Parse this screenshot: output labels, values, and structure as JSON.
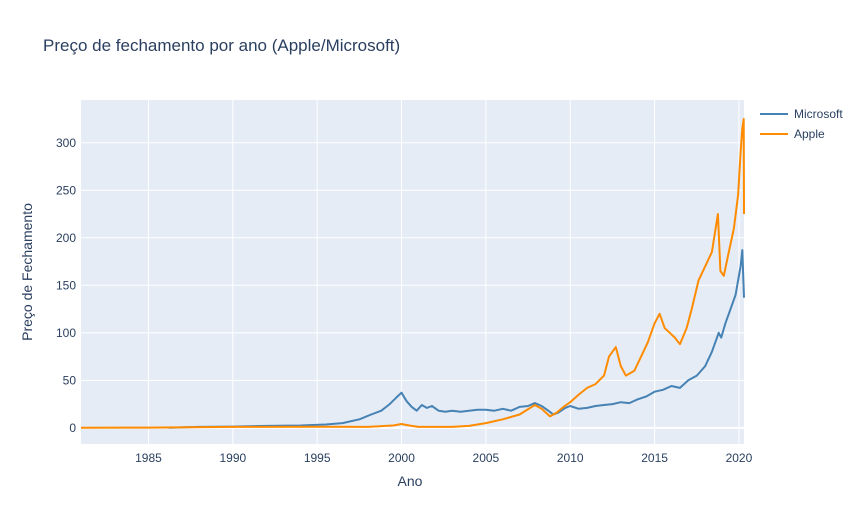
{
  "chart_data": {
    "type": "line",
    "title": "Preço de fechamento por ano (Apple/Microsoft)",
    "xlabel": "Ano",
    "ylabel": "Preço de Fechamento",
    "xlim": [
      1981.0,
      2020.3
    ],
    "ylim": [
      -17,
      345
    ],
    "xticks": [
      1985,
      1990,
      1995,
      2000,
      2005,
      2010,
      2015,
      2020
    ],
    "yticks": [
      0,
      50,
      100,
      150,
      200,
      250,
      300
    ],
    "grid": true,
    "background": "#e5ecf6",
    "legend_position": "top-right",
    "series": [
      {
        "name": "Microsoft",
        "color": "#4682b4",
        "x": [
          1986.2,
          1988,
          1990,
          1992,
          1994,
          1995.5,
          1996.5,
          1997.5,
          1998.2,
          1998.8,
          1999.3,
          1999.7,
          2000.0,
          2000.3,
          2000.6,
          2000.9,
          2001.2,
          2001.5,
          2001.8,
          2002.2,
          2002.6,
          2003.0,
          2003.5,
          2004.0,
          2004.5,
          2005.0,
          2005.5,
          2006.0,
          2006.5,
          2007.0,
          2007.5,
          2007.9,
          2008.3,
          2008.7,
          2009.0,
          2009.3,
          2009.7,
          2010.0,
          2010.5,
          2011.0,
          2011.5,
          2012.0,
          2012.5,
          2013.0,
          2013.5,
          2014.0,
          2014.5,
          2015.0,
          2015.5,
          2016.0,
          2016.5,
          2017.0,
          2017.5,
          2018.0,
          2018.4,
          2018.8,
          2018.95,
          2019.2,
          2019.5,
          2019.8,
          2020.0,
          2020.1,
          2020.2,
          2020.3
        ],
        "y": [
          0,
          1,
          1.3,
          2,
          2.5,
          3.5,
          5,
          9,
          14,
          18,
          25,
          32,
          37,
          28,
          22,
          18,
          24,
          21,
          23,
          18,
          17,
          18,
          17,
          18,
          19,
          19,
          18,
          20,
          18,
          22,
          23,
          26,
          23,
          18,
          14,
          16,
          21,
          23,
          20,
          21,
          23,
          24,
          25,
          27,
          26,
          30,
          33,
          38,
          40,
          44,
          42,
          50,
          55,
          65,
          80,
          100,
          95,
          110,
          125,
          140,
          160,
          170,
          187,
          137
        ]
      },
      {
        "name": "Apple",
        "color": "#ff8c00",
        "x": [
          1981,
          1985,
          1990,
          1995,
          1998,
          1999.5,
          2000.0,
          2000.3,
          2000.6,
          2001,
          2003,
          2004,
          2005,
          2006,
          2007,
          2007.9,
          2008.3,
          2008.8,
          2009.2,
          2009.6,
          2010.0,
          2010.5,
          2011.0,
          2011.5,
          2012.0,
          2012.3,
          2012.7,
          2013.0,
          2013.3,
          2013.8,
          2014.2,
          2014.6,
          2015.0,
          2015.3,
          2015.6,
          2015.9,
          2016.2,
          2016.5,
          2016.9,
          2017.2,
          2017.6,
          2018.0,
          2018.4,
          2018.75,
          2018.9,
          2019.1,
          2019.4,
          2019.7,
          2019.95,
          2020.1,
          2020.2,
          2020.28,
          2020.3
        ],
        "y": [
          0,
          0.3,
          1,
          1.2,
          1,
          2.5,
          4,
          3,
          2,
          1,
          1,
          2,
          5,
          9,
          14,
          24,
          20,
          12,
          16,
          22,
          27,
          35,
          42,
          46,
          55,
          75,
          85,
          65,
          55,
          60,
          75,
          90,
          110,
          120,
          105,
          100,
          95,
          88,
          105,
          125,
          155,
          170,
          185,
          225,
          165,
          160,
          185,
          210,
          245,
          290,
          315,
          325,
          225
        ]
      }
    ]
  }
}
